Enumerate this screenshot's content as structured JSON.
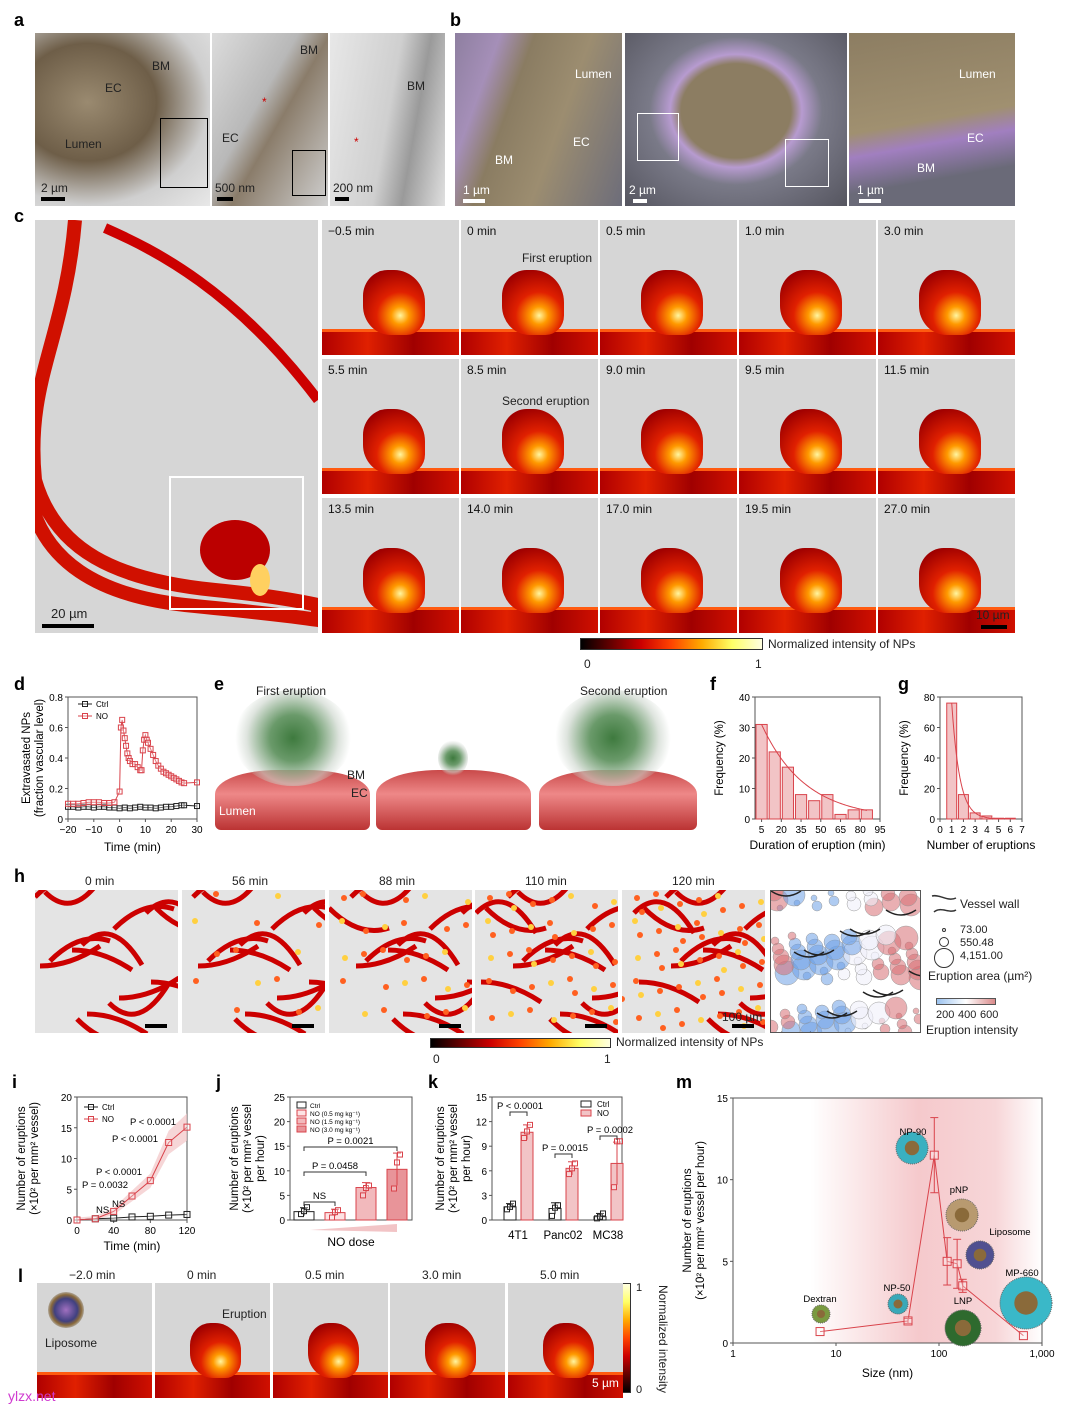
{
  "panels": {
    "a": "a",
    "b": "b",
    "c": "c",
    "d": "d",
    "e": "e",
    "f": "f",
    "g": "g",
    "h": "h",
    "i": "i",
    "j": "j",
    "k": "k",
    "l": "l",
    "m": "m"
  },
  "a": {
    "labels": [
      "BM",
      "EC",
      "Lumen",
      "BM",
      "EC",
      "*",
      "BM",
      "*"
    ],
    "scales": [
      "2 µm",
      "500 nm",
      "200 nm"
    ]
  },
  "b": {
    "labels": [
      "Lumen",
      "EC",
      "BM",
      "Lumen",
      "EC",
      "BM"
    ],
    "scales": [
      "1 µm",
      "2 µm",
      "1 µm"
    ]
  },
  "c": {
    "scale_main": "20 µm",
    "scale_small": "10 µm",
    "frames": [
      "−0.5 min",
      "0 min",
      "0.5 min",
      "1.0 min",
      "3.0 min",
      "5.5 min",
      "8.5 min",
      "9.0 min",
      "9.5 min",
      "11.5 min",
      "13.5 min",
      "14.0 min",
      "17.0 min",
      "19.5 min",
      "27.0 min"
    ],
    "first_eruption": "First eruption",
    "second_eruption": "Second eruption",
    "colorbar": {
      "min": "0",
      "max": "1",
      "label": "Normalized intensity of NPs"
    }
  },
  "e": {
    "first": "First eruption",
    "second": "Second eruption",
    "bm": "BM",
    "ec": "EC",
    "lumen": "Lumen"
  },
  "h": {
    "frames": [
      "0 min",
      "56 min",
      "88 min",
      "110 min",
      "120 min"
    ],
    "scale": "100 µm",
    "legend": {
      "vessel_wall": "Vessel wall",
      "sizes": [
        "73.00",
        "550.48",
        "4,151.00"
      ],
      "area_label": "Eruption area (µm²)",
      "intensity_ticks": [
        "200",
        "400",
        "600"
      ],
      "intensity_label": "Eruption intensity"
    },
    "colorbar": {
      "min": "0",
      "max": "1",
      "label": "Normalized intensity of NPs"
    }
  },
  "l": {
    "frames": [
      "−2.0 min",
      "0 min",
      "0.5 min",
      "3.0 min",
      "5.0 min"
    ],
    "liposome": "Liposome",
    "eruption": "Eruption",
    "scale": "5 µm",
    "colorbar": {
      "max": "1",
      "min": "0",
      "label": "Normalized intensity"
    }
  },
  "watermark": "ylzx.net",
  "colors": {
    "ctrl": "#222222",
    "no": "#d9434b",
    "no_fill": "#f2c4c6"
  },
  "chart_data": [
    {
      "id": "d",
      "type": "line",
      "xlabel": "Time (min)",
      "ylabel": "Extravasated NPs (fraction vascular level)",
      "xlim": [
        -20,
        30
      ],
      "ylim": [
        0,
        0.8
      ],
      "xticks": [
        -20,
        -10,
        0,
        10,
        20,
        30
      ],
      "yticks": [
        0,
        0.2,
        0.4,
        0.6,
        0.8
      ],
      "series": [
        {
          "name": "Ctrl",
          "x": [
            -20,
            -18,
            -16,
            -14,
            -12,
            -10,
            -8,
            -6,
            -4,
            -2,
            0,
            2,
            4,
            6,
            8,
            10,
            12,
            14,
            16,
            18,
            20,
            22,
            24,
            25,
            30
          ],
          "y": [
            0.08,
            0.08,
            0.075,
            0.08,
            0.08,
            0.075,
            0.08,
            0.08,
            0.075,
            0.075,
            0.07,
            0.075,
            0.07,
            0.075,
            0.08,
            0.075,
            0.075,
            0.07,
            0.075,
            0.08,
            0.08,
            0.085,
            0.09,
            0.09,
            0.085
          ]
        },
        {
          "name": "NO",
          "x": [
            -20,
            -18,
            -16,
            -14,
            -12,
            -10,
            -8,
            -6,
            -4,
            -2,
            0,
            0.5,
            1,
            1.5,
            2,
            2.5,
            3,
            3.5,
            4,
            5,
            6,
            7,
            8,
            8.5,
            9,
            9.5,
            10,
            10.5,
            11,
            12,
            13,
            14,
            15,
            16,
            17,
            18,
            19,
            20,
            21,
            22,
            23,
            24,
            25,
            30
          ],
          "y": [
            0.1,
            0.1,
            0.1,
            0.105,
            0.11,
            0.11,
            0.11,
            0.105,
            0.105,
            0.11,
            0.18,
            0.6,
            0.65,
            0.58,
            0.53,
            0.48,
            0.43,
            0.4,
            0.38,
            0.36,
            0.36,
            0.34,
            0.32,
            0.32,
            0.45,
            0.52,
            0.55,
            0.52,
            0.5,
            0.46,
            0.42,
            0.38,
            0.35,
            0.33,
            0.31,
            0.3,
            0.29,
            0.28,
            0.27,
            0.26,
            0.25,
            0.24,
            0.235,
            0.24
          ]
        }
      ]
    },
    {
      "id": "f",
      "type": "bar",
      "xlabel": "Duration of eruption  (min)",
      "ylabel": "Frequency (%)",
      "xlim": [
        0,
        95
      ],
      "ylim": [
        0,
        40
      ],
      "xticks": [
        5,
        20,
        35,
        50,
        65,
        80,
        95
      ],
      "yticks": [
        0,
        10,
        20,
        30,
        40
      ],
      "x": [
        5,
        15,
        25,
        35,
        45,
        55,
        65,
        75,
        85
      ],
      "values": [
        31,
        22,
        17,
        8,
        6,
        8,
        1.5,
        3,
        3
      ],
      "fit": "exponential"
    },
    {
      "id": "g",
      "type": "bar",
      "xlabel": "Number of eruptions",
      "ylabel": "Frequency (%)",
      "xlim": [
        0,
        7
      ],
      "ylim": [
        0,
        80
      ],
      "xticks": [
        0,
        1,
        2,
        3,
        4,
        5,
        6,
        7
      ],
      "yticks": [
        0,
        20,
        40,
        60,
        80
      ],
      "x": [
        1,
        2,
        3,
        4,
        5,
        6
      ],
      "values": [
        76,
        16,
        4,
        2,
        0.5,
        0.5
      ],
      "fit": "exponential"
    },
    {
      "id": "i",
      "type": "line",
      "xlabel": "Time (min)",
      "ylabel": "Number of eruptions (×10² per mm² vessel)",
      "xlim": [
        0,
        120
      ],
      "ylim": [
        0,
        20
      ],
      "xticks": [
        0,
        40,
        80,
        120
      ],
      "yticks": [
        0,
        5,
        10,
        15,
        20
      ],
      "series": [
        {
          "name": "Ctrl",
          "x": [
            0,
            20,
            40,
            60,
            80,
            100,
            120
          ],
          "y": [
            0,
            0.2,
            0.3,
            0.5,
            0.6,
            0.8,
            0.9
          ]
        },
        {
          "name": "NO",
          "x": [
            0,
            20,
            40,
            60,
            80,
            100,
            120
          ],
          "y": [
            0,
            0.2,
            1.4,
            3.9,
            6.4,
            12.6,
            15.1
          ]
        }
      ],
      "annotations": [
        "NS",
        "NS",
        "P = 0.0032",
        "P < 0.0001",
        "P < 0.0001",
        "P < 0.0001"
      ]
    },
    {
      "id": "j",
      "type": "bar",
      "xlabel": "NO dose",
      "ylabel": "Number of eruptions (×10² per mm² vessel per hour)",
      "ylim": [
        0,
        25
      ],
      "yticks": [
        0,
        5,
        10,
        15,
        20,
        25
      ],
      "categories": [
        "Ctrl",
        "NO (0.5 mg kg⁻¹)",
        "NO (1.5 mg kg⁻¹)",
        "NO (3.0 mg kg⁻¹)"
      ],
      "values": [
        1.7,
        1.5,
        6.6,
        10.3
      ],
      "errors": [
        0.8,
        0.7,
        1.0,
        3.3
      ],
      "points": [
        [
          1.2,
          1.8,
          2.6
        ],
        [
          0.5,
          1.6,
          2.0
        ],
        [
          5.0,
          6.5,
          7.0
        ],
        [
          6.4,
          11.7,
          13.3
        ]
      ],
      "annotations": [
        "NS",
        "P = 0.0458",
        "P = 0.0021"
      ]
    },
    {
      "id": "k",
      "type": "bar",
      "ylabel": "Number of eruptions (×10² per mm² vessel per hour)",
      "ylim": [
        0,
        15
      ],
      "yticks": [
        0,
        3,
        6,
        9,
        12,
        15
      ],
      "categories": [
        "4T1",
        "Panc02",
        "MC38"
      ],
      "series": [
        {
          "name": "Ctrl",
          "values": [
            1.6,
            1.4,
            0.4
          ],
          "errors": [
            0.4,
            0.7,
            0.4
          ],
          "points": [
            [
              1.3,
              1.6,
              2.0
            ],
            [
              0.5,
              1.5,
              1.8
            ],
            [
              0.2,
              0.4,
              0.8
            ]
          ]
        },
        {
          "name": "NO",
          "values": [
            10.7,
            6.3,
            6.9
          ],
          "errors": [
            0.9,
            0.8,
            2.6
          ],
          "points": [
            [
              10.0,
              10.8,
              11.6
            ],
            [
              5.6,
              6.3,
              6.9
            ],
            [
              4.0,
              9.6,
              9.6
            ]
          ]
        }
      ],
      "annotations": [
        "P < 0.0001",
        "P = 0.0015",
        "P = 0.0002"
      ]
    },
    {
      "id": "m",
      "type": "scatter",
      "xscale": "log",
      "xlabel": "Size (nm)",
      "ylabel": "Number of eruptions (×10² per mm² vessel per hour)",
      "xlim": [
        1,
        1000
      ],
      "ylim": [
        0,
        15
      ],
      "xticks": [
        1,
        10,
        100,
        1000
      ],
      "xticklabels": [
        "1",
        "10",
        "100",
        "1,000"
      ],
      "yticks": [
        0,
        5,
        10,
        15
      ],
      "x": [
        7,
        50,
        90,
        120,
        150,
        170,
        660
      ],
      "y": [
        0.7,
        1.35,
        11.5,
        5.0,
        4.85,
        3.5,
        0.45
      ],
      "errors": [
        0,
        0.15,
        2.3,
        1.45,
        1.5,
        0.4,
        0
      ],
      "labels": [
        "Dextran",
        "NP-50",
        "NP-90",
        "pNP",
        "Liposome",
        "LNP",
        "MP-660"
      ]
    }
  ]
}
